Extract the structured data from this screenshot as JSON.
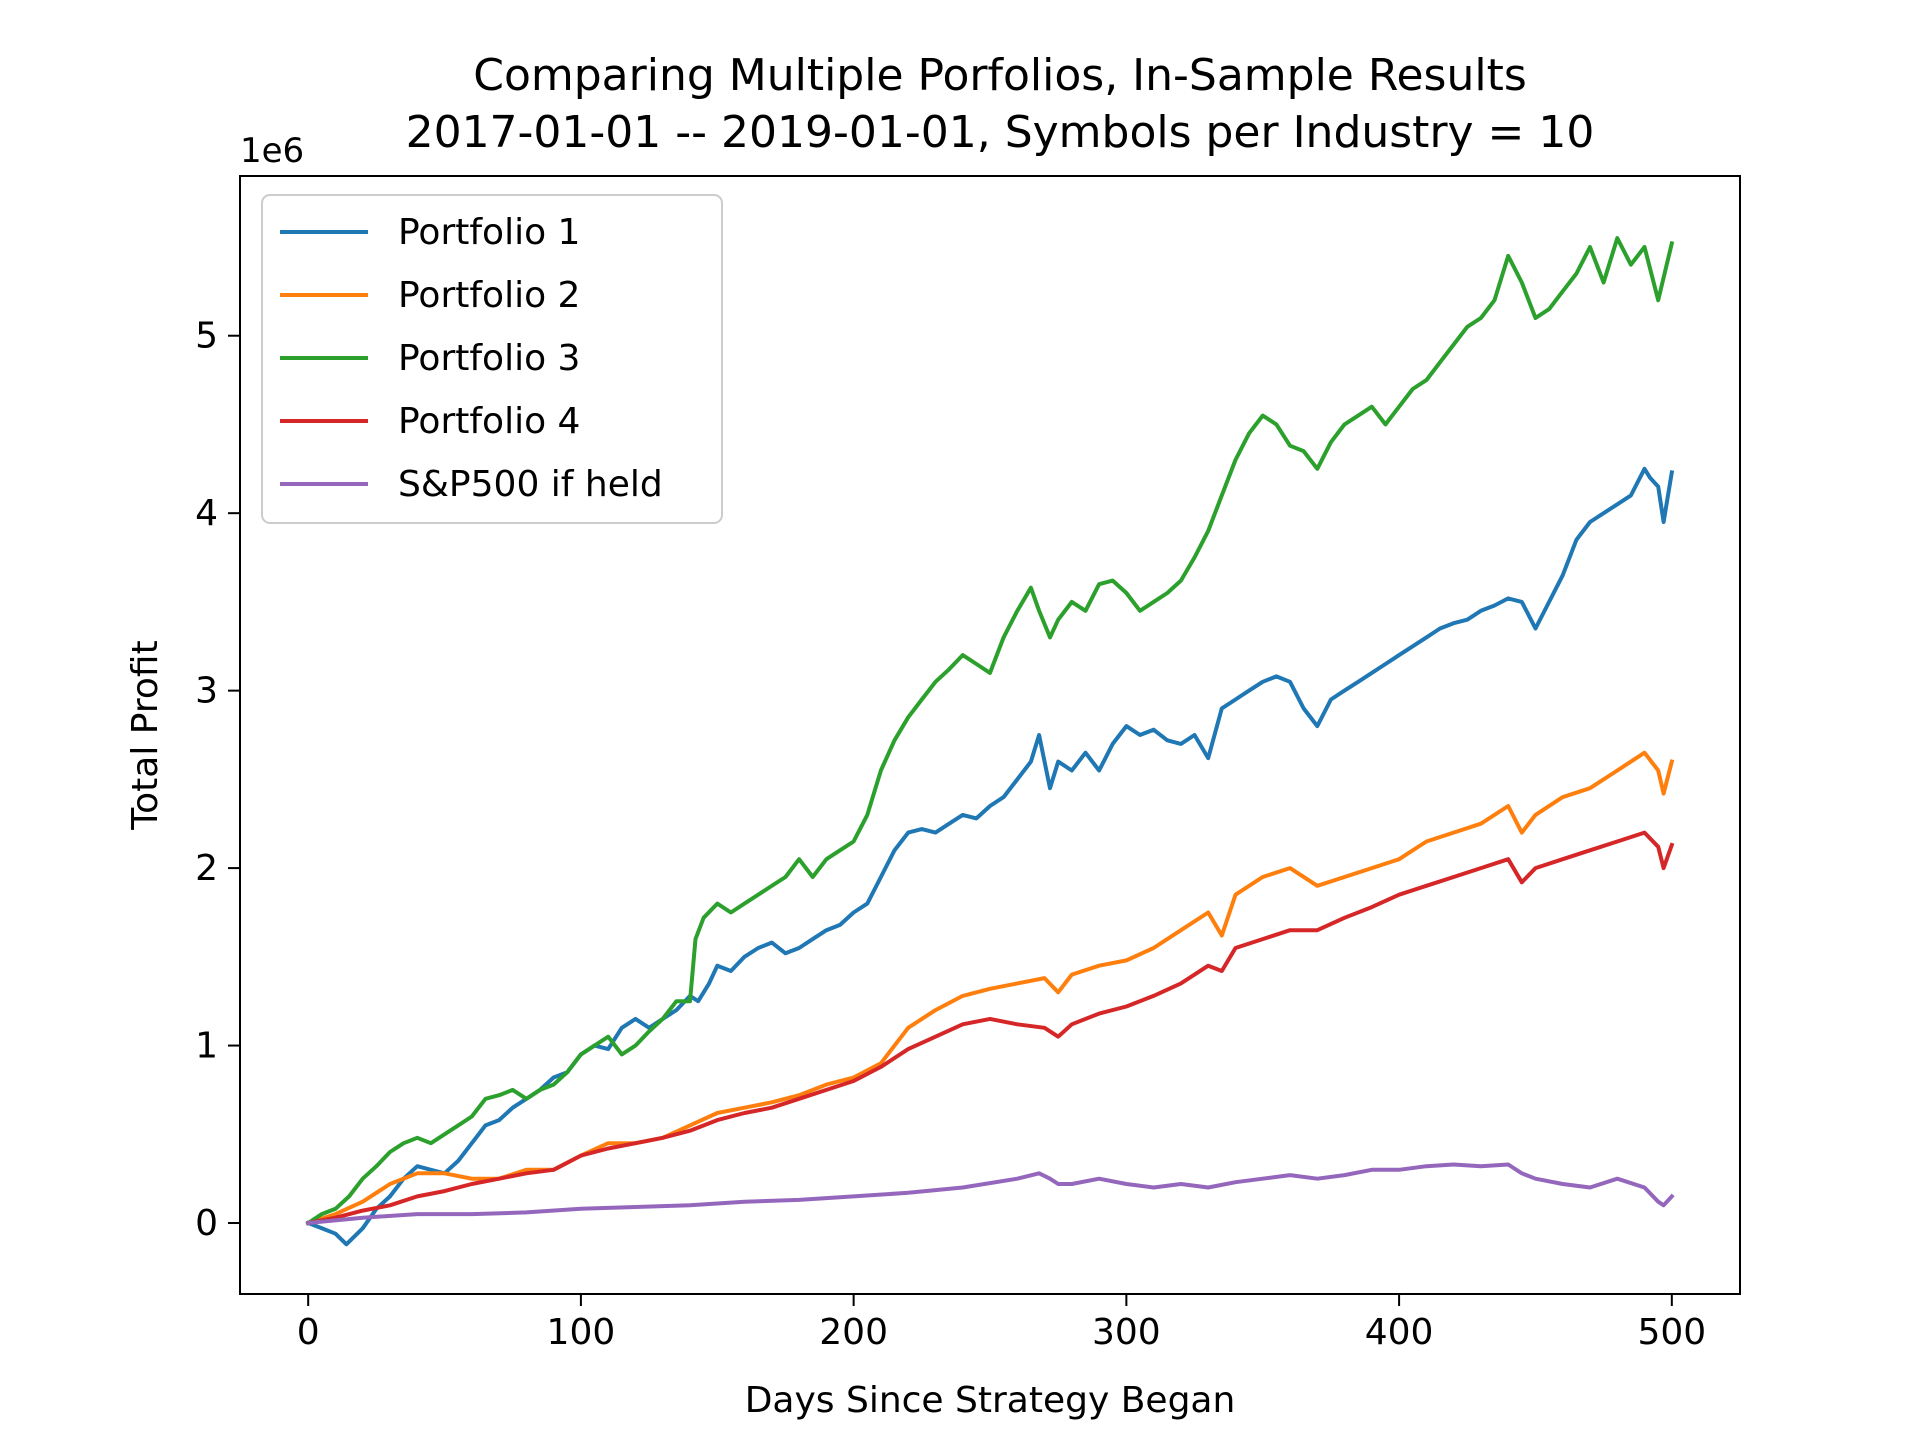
{
  "chart_data": {
    "type": "line",
    "title": "Comparing Multiple Porfolios, In-Sample Results",
    "subtitle": "2017-01-01 -- 2019-01-01, Symbols per Industry = 10",
    "xlabel": "Days Since Strategy Began",
    "ylabel": "Total Profit",
    "y_offset_label": "1e6",
    "xlim": [
      -25,
      525
    ],
    "ylim": [
      -0.4,
      5.9
    ],
    "x_ticks": [
      0,
      100,
      200,
      300,
      400,
      500
    ],
    "x_tick_labels": [
      "0",
      "100",
      "200",
      "300",
      "400",
      "500"
    ],
    "y_ticks": [
      0,
      1,
      2,
      3,
      4,
      5
    ],
    "y_tick_labels": [
      "0",
      "1",
      "2",
      "3",
      "4",
      "5"
    ],
    "grid": false,
    "legend_position": "top-left",
    "series": [
      {
        "name": "Portfolio 1",
        "color": "#1f77b4",
        "x": [
          0,
          5,
          10,
          14,
          20,
          25,
          30,
          35,
          40,
          45,
          50,
          55,
          60,
          65,
          70,
          75,
          80,
          85,
          90,
          95,
          100,
          105,
          110,
          115,
          120,
          125,
          130,
          135,
          140,
          143,
          147,
          150,
          155,
          160,
          165,
          170,
          175,
          180,
          185,
          190,
          195,
          200,
          205,
          210,
          215,
          220,
          225,
          230,
          235,
          240,
          245,
          250,
          255,
          260,
          265,
          268,
          272,
          275,
          280,
          285,
          290,
          295,
          300,
          305,
          310,
          315,
          320,
          325,
          330,
          335,
          340,
          345,
          350,
          355,
          360,
          365,
          370,
          375,
          380,
          385,
          390,
          395,
          400,
          405,
          410,
          415,
          420,
          425,
          430,
          435,
          440,
          445,
          450,
          455,
          460,
          465,
          470,
          475,
          480,
          485,
          490,
          492,
          495,
          497,
          500
        ],
        "y": [
          0.0,
          -0.03,
          -0.06,
          -0.12,
          -0.03,
          0.08,
          0.15,
          0.25,
          0.32,
          0.3,
          0.28,
          0.35,
          0.45,
          0.55,
          0.58,
          0.65,
          0.7,
          0.75,
          0.82,
          0.85,
          0.95,
          1.0,
          0.98,
          1.1,
          1.15,
          1.1,
          1.15,
          1.2,
          1.28,
          1.25,
          1.35,
          1.45,
          1.42,
          1.5,
          1.55,
          1.58,
          1.52,
          1.55,
          1.6,
          1.65,
          1.68,
          1.75,
          1.8,
          1.95,
          2.1,
          2.2,
          2.22,
          2.2,
          2.25,
          2.3,
          2.28,
          2.35,
          2.4,
          2.5,
          2.6,
          2.75,
          2.45,
          2.6,
          2.55,
          2.65,
          2.55,
          2.7,
          2.8,
          2.75,
          2.78,
          2.72,
          2.7,
          2.75,
          2.62,
          2.9,
          2.95,
          3.0,
          3.05,
          3.08,
          3.05,
          2.9,
          2.8,
          2.95,
          3.0,
          3.05,
          3.1,
          3.15,
          3.2,
          3.25,
          3.3,
          3.35,
          3.38,
          3.4,
          3.45,
          3.48,
          3.52,
          3.5,
          3.35,
          3.5,
          3.65,
          3.85,
          3.95,
          4.0,
          4.05,
          4.1,
          4.25,
          4.2,
          4.15,
          3.95,
          4.23
        ]
      },
      {
        "name": "Portfolio 2",
        "color": "#ff7f0e",
        "x": [
          0,
          10,
          20,
          30,
          40,
          50,
          60,
          70,
          80,
          90,
          100,
          110,
          120,
          130,
          140,
          150,
          160,
          170,
          180,
          190,
          200,
          210,
          220,
          230,
          240,
          250,
          260,
          270,
          275,
          280,
          290,
          300,
          310,
          320,
          330,
          335,
          340,
          350,
          360,
          370,
          380,
          390,
          400,
          410,
          420,
          430,
          440,
          445,
          450,
          460,
          470,
          480,
          490,
          495,
          497,
          500
        ],
        "y": [
          0.0,
          0.05,
          0.12,
          0.22,
          0.28,
          0.28,
          0.25,
          0.25,
          0.3,
          0.3,
          0.38,
          0.45,
          0.45,
          0.48,
          0.55,
          0.62,
          0.65,
          0.68,
          0.72,
          0.78,
          0.82,
          0.9,
          1.1,
          1.2,
          1.28,
          1.32,
          1.35,
          1.38,
          1.3,
          1.4,
          1.45,
          1.48,
          1.55,
          1.65,
          1.75,
          1.62,
          1.85,
          1.95,
          2.0,
          1.9,
          1.95,
          2.0,
          2.05,
          2.15,
          2.2,
          2.25,
          2.35,
          2.2,
          2.3,
          2.4,
          2.45,
          2.55,
          2.65,
          2.55,
          2.42,
          2.6
        ]
      },
      {
        "name": "Portfolio 3",
        "color": "#2ca02c",
        "x": [
          0,
          5,
          10,
          15,
          20,
          25,
          30,
          35,
          40,
          45,
          50,
          55,
          60,
          65,
          70,
          75,
          80,
          85,
          90,
          95,
          100,
          105,
          110,
          115,
          120,
          125,
          130,
          135,
          140,
          142,
          145,
          150,
          155,
          160,
          165,
          170,
          175,
          180,
          185,
          190,
          195,
          200,
          205,
          210,
          215,
          220,
          225,
          230,
          235,
          240,
          245,
          250,
          255,
          260,
          265,
          268,
          272,
          275,
          280,
          285,
          290,
          295,
          300,
          305,
          310,
          315,
          320,
          325,
          330,
          335,
          340,
          345,
          350,
          355,
          360,
          365,
          370,
          375,
          380,
          385,
          390,
          395,
          400,
          405,
          410,
          415,
          420,
          425,
          430,
          435,
          440,
          445,
          450,
          455,
          460,
          465,
          470,
          475,
          480,
          485,
          490,
          495,
          500
        ],
        "y": [
          0.0,
          0.05,
          0.08,
          0.15,
          0.25,
          0.32,
          0.4,
          0.45,
          0.48,
          0.45,
          0.5,
          0.55,
          0.6,
          0.7,
          0.72,
          0.75,
          0.7,
          0.75,
          0.78,
          0.85,
          0.95,
          1.0,
          1.05,
          0.95,
          1.0,
          1.08,
          1.15,
          1.25,
          1.25,
          1.6,
          1.72,
          1.8,
          1.75,
          1.8,
          1.85,
          1.9,
          1.95,
          2.05,
          1.95,
          2.05,
          2.1,
          2.15,
          2.3,
          2.55,
          2.72,
          2.85,
          2.95,
          3.05,
          3.12,
          3.2,
          3.15,
          3.1,
          3.3,
          3.45,
          3.58,
          3.45,
          3.3,
          3.4,
          3.5,
          3.45,
          3.6,
          3.62,
          3.55,
          3.45,
          3.5,
          3.55,
          3.62,
          3.75,
          3.9,
          4.1,
          4.3,
          4.45,
          4.55,
          4.5,
          4.38,
          4.35,
          4.25,
          4.4,
          4.5,
          4.55,
          4.6,
          4.5,
          4.6,
          4.7,
          4.75,
          4.85,
          4.95,
          5.05,
          5.1,
          5.2,
          5.45,
          5.3,
          5.1,
          5.15,
          5.25,
          5.35,
          5.5,
          5.3,
          5.55,
          5.4,
          5.5,
          5.2,
          5.52
        ]
      },
      {
        "name": "Portfolio 4",
        "color": "#d62728",
        "x": [
          0,
          10,
          20,
          30,
          40,
          50,
          60,
          70,
          80,
          90,
          100,
          110,
          120,
          130,
          140,
          150,
          160,
          170,
          180,
          190,
          200,
          210,
          220,
          230,
          240,
          250,
          260,
          270,
          275,
          280,
          290,
          300,
          310,
          320,
          330,
          335,
          340,
          350,
          360,
          370,
          380,
          390,
          400,
          410,
          420,
          430,
          440,
          445,
          450,
          460,
          470,
          480,
          490,
          495,
          497,
          500
        ],
        "y": [
          0.0,
          0.03,
          0.07,
          0.1,
          0.15,
          0.18,
          0.22,
          0.25,
          0.28,
          0.3,
          0.38,
          0.42,
          0.45,
          0.48,
          0.52,
          0.58,
          0.62,
          0.65,
          0.7,
          0.75,
          0.8,
          0.88,
          0.98,
          1.05,
          1.12,
          1.15,
          1.12,
          1.1,
          1.05,
          1.12,
          1.18,
          1.22,
          1.28,
          1.35,
          1.45,
          1.42,
          1.55,
          1.6,
          1.65,
          1.65,
          1.72,
          1.78,
          1.85,
          1.9,
          1.95,
          2.0,
          2.05,
          1.92,
          2.0,
          2.05,
          2.1,
          2.15,
          2.2,
          2.12,
          2.0,
          2.13
        ]
      },
      {
        "name": "S&P500 if held",
        "color": "#9467bd",
        "x": [
          0,
          20,
          40,
          60,
          80,
          100,
          120,
          140,
          160,
          180,
          200,
          220,
          240,
          260,
          268,
          272,
          275,
          280,
          290,
          300,
          310,
          320,
          330,
          340,
          350,
          360,
          370,
          380,
          390,
          400,
          410,
          420,
          430,
          440,
          445,
          450,
          460,
          470,
          480,
          490,
          495,
          497,
          500
        ],
        "y": [
          0.0,
          0.03,
          0.05,
          0.05,
          0.06,
          0.08,
          0.09,
          0.1,
          0.12,
          0.13,
          0.15,
          0.17,
          0.2,
          0.25,
          0.28,
          0.25,
          0.22,
          0.22,
          0.25,
          0.22,
          0.2,
          0.22,
          0.2,
          0.23,
          0.25,
          0.27,
          0.25,
          0.27,
          0.3,
          0.3,
          0.32,
          0.33,
          0.32,
          0.33,
          0.28,
          0.25,
          0.22,
          0.2,
          0.25,
          0.2,
          0.12,
          0.1,
          0.15
        ]
      }
    ]
  }
}
